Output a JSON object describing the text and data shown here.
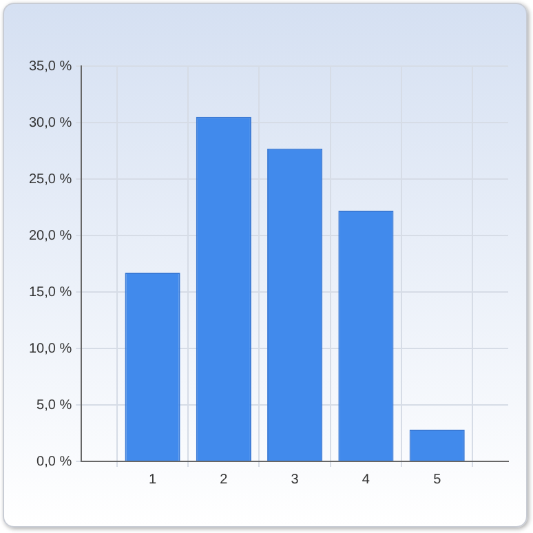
{
  "chart_data": {
    "type": "bar",
    "x": [
      1,
      2,
      3,
      4,
      5
    ],
    "values": [
      16.7,
      30.5,
      27.7,
      22.2,
      2.8
    ],
    "color": "#418aec",
    "xlim": [
      0,
      6
    ],
    "xticks": [
      1,
      2,
      3,
      4,
      5
    ],
    "ylim": [
      0,
      35
    ],
    "yticks": [
      {
        "value": 0,
        "label": "0,0 %"
      },
      {
        "value": 5,
        "label": "5,0 %"
      },
      {
        "value": 10,
        "label": "10,0 %"
      },
      {
        "value": 15,
        "label": "15,0 %"
      },
      {
        "value": 20,
        "label": "20,0 %"
      },
      {
        "value": 25,
        "label": "25,0 %"
      },
      {
        "value": 30,
        "label": "30,0 %"
      },
      {
        "value": 35,
        "label": "35,0 %"
      }
    ],
    "grid": true,
    "legend": false
  }
}
